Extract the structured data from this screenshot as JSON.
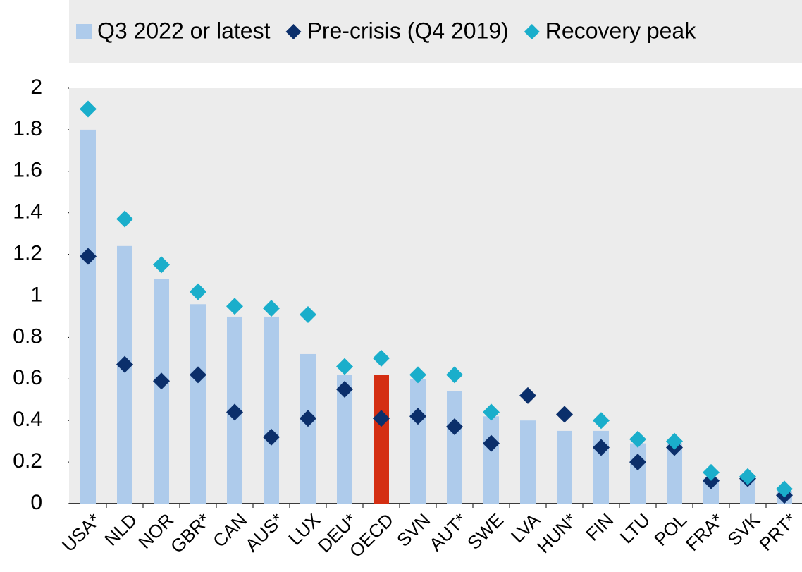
{
  "chart_data": {
    "type": "bar",
    "categories": [
      "USA*",
      "NLD",
      "NOR",
      "GBR*",
      "CAN",
      "AUS*",
      "LUX",
      "DEU*",
      "OECD",
      "SVN",
      "AUT*",
      "SWE",
      "LVA",
      "HUN*",
      "FIN",
      "LTU",
      "POL",
      "FRA*",
      "SVK",
      "PRT*"
    ],
    "series": [
      {
        "name": "Q3 2022 or latest",
        "type": "bar",
        "color": "#aecbeb",
        "colors": [
          "#aecbeb",
          "#aecbeb",
          "#aecbeb",
          "#aecbeb",
          "#aecbeb",
          "#aecbeb",
          "#aecbeb",
          "#aecbeb",
          "#d42e12",
          "#aecbeb",
          "#aecbeb",
          "#aecbeb",
          "#aecbeb",
          "#aecbeb",
          "#aecbeb",
          "#aecbeb",
          "#aecbeb",
          "#aecbeb",
          "#aecbeb",
          "#aecbeb"
        ],
        "values": [
          1.8,
          1.24,
          1.08,
          0.96,
          0.9,
          0.9,
          0.72,
          0.62,
          0.62,
          0.6,
          0.54,
          0.42,
          0.4,
          0.35,
          0.35,
          0.29,
          0.29,
          0.12,
          0.12,
          0.06
        ]
      },
      {
        "name": "Pre-crisis (Q4 2019)",
        "type": "diamond",
        "color": "#0b2f6b",
        "values": [
          1.19,
          0.67,
          0.59,
          0.62,
          0.44,
          0.32,
          0.41,
          0.55,
          0.41,
          0.42,
          0.37,
          0.29,
          0.52,
          0.43,
          0.27,
          0.2,
          0.27,
          0.11,
          0.12,
          0.04
        ]
      },
      {
        "name": "Recovery peak",
        "type": "diamond",
        "color": "#1aaecb",
        "values": [
          1.9,
          1.37,
          1.15,
          1.02,
          0.95,
          0.94,
          0.91,
          0.66,
          0.7,
          0.62,
          0.62,
          0.44,
          null,
          null,
          0.4,
          0.31,
          0.3,
          0.15,
          0.13,
          0.07
        ]
      }
    ],
    "ylim": [
      0,
      2
    ],
    "yticks": [
      0,
      0.2,
      0.4,
      0.6,
      0.8,
      1,
      1.2,
      1.4,
      1.6,
      1.8,
      2
    ]
  }
}
